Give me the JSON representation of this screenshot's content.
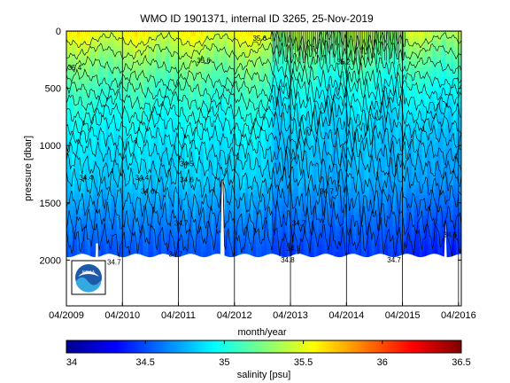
{
  "chart_data": {
    "type": "heatmap",
    "title": "WMO ID 1901371, internal ID 3265, 25-Nov-2019",
    "xlabel": "month/year",
    "ylabel": "pressure [dbar]",
    "x_tick_labels": [
      "04/2009",
      "04/2010",
      "04/2011",
      "04/2012",
      "04/2013",
      "04/2014",
      "04/2015",
      "04/2016"
    ],
    "x_ticks_year": [
      2009.25,
      2010.25,
      2011.25,
      2012.25,
      2013.25,
      2014.25,
      2015.25,
      2016.25
    ],
    "xlim": [
      2009.25,
      2016.3
    ],
    "y_ticks": [
      0,
      500,
      1000,
      1500,
      2000
    ],
    "ylim": [
      0,
      2400
    ],
    "y_reversed": true,
    "vertical_lines_year": [
      2009.25,
      2010.25,
      2011.25,
      2012.25,
      2013.25,
      2014.25,
      2015.25,
      2016.25
    ],
    "colorbar": {
      "label": "salinity [psu]",
      "ticks": [
        34,
        34.5,
        35,
        35.5,
        36,
        36.5
      ],
      "range": [
        34,
        36.5
      ],
      "colormap": "jet"
    },
    "contour_labels": [
      {
        "text": "35.6",
        "t": 2012.7,
        "p": 85
      },
      {
        "text": "35.6",
        "t": 2011.7,
        "p": 280
      },
      {
        "text": "35.4",
        "t": 2009.4,
        "p": 340
      },
      {
        "text": "35.2",
        "t": 2014.2,
        "p": 290
      },
      {
        "text": "34.5",
        "t": 2011.4,
        "p": 1180
      },
      {
        "text": "34.4",
        "t": 2009.6,
        "p": 1300
      },
      {
        "text": "34.4",
        "t": 2010.6,
        "p": 1300
      },
      {
        "text": "34.6",
        "t": 2011.4,
        "p": 1320
      },
      {
        "text": "34.6",
        "t": 2010.7,
        "p": 1420
      },
      {
        "text": "34.7",
        "t": 2013.9,
        "p": 1420
      },
      {
        "text": "34.7",
        "t": 2011.3,
        "p": 1700
      },
      {
        "text": "34.7",
        "t": 2013.4,
        "p": 1700
      },
      {
        "text": "34.7",
        "t": 2010.1,
        "p": 2040
      },
      {
        "text": "34.7",
        "t": 2011.2,
        "p": 1970
      },
      {
        "text": "34.7",
        "t": 2015.1,
        "p": 2020
      },
      {
        "text": "34.8",
        "t": 2013.2,
        "p": 2020
      },
      {
        "text": "34.5",
        "t": 2013.3,
        "p": 1920
      },
      {
        "text": "34.6",
        "t": 2016.1,
        "p": 1800
      }
    ],
    "bottom_pressure_dbar": 1960
  },
  "logo": {
    "text": "NOAA"
  }
}
